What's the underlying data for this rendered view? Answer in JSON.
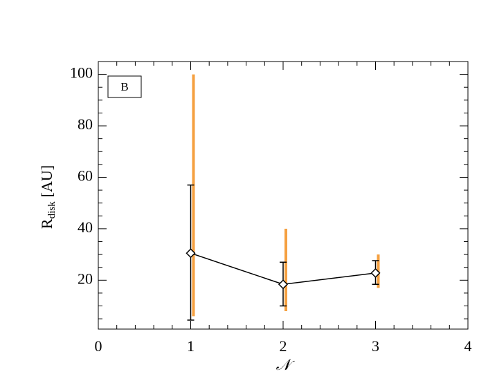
{
  "chart_data": {
    "type": "errorline",
    "ylabel": {
      "main": "R",
      "sub": "disk",
      "unit": "[AU]"
    },
    "xlabel": "𝒩",
    "annotation": "B",
    "x": [
      1,
      2,
      3
    ],
    "series": [
      {
        "color": "#000000",
        "values": [
          30.5,
          18.4,
          22.8
        ],
        "yerr_low": [
          4.5,
          10,
          18.4
        ],
        "yerr_high": [
          57,
          27,
          27.6
        ]
      }
    ],
    "ranges": {
      "color": "#f5a040",
      "low": [
        6,
        8,
        17
      ],
      "high": [
        100,
        40,
        30
      ]
    },
    "xlim": [
      0,
      4
    ],
    "xticks": [
      0,
      1,
      2,
      3,
      4
    ],
    "xminorticks": [
      0.2,
      0.4,
      0.6,
      0.8,
      1.2,
      1.4,
      1.6,
      1.8,
      2.2,
      2.4,
      2.6,
      2.8,
      3.2,
      3.4,
      3.6,
      3.8
    ],
    "ylim": [
      1,
      105
    ],
    "yticks": [
      20,
      40,
      60,
      80,
      100
    ],
    "yminorticks": [
      5,
      10,
      15,
      25,
      30,
      35,
      45,
      50,
      55,
      65,
      70,
      75,
      85,
      90,
      95
    ]
  }
}
